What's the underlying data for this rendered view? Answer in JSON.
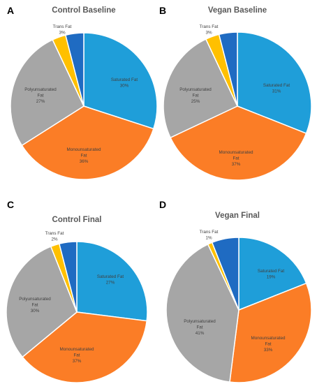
{
  "colors": {
    "saturated": "#1F9ED9",
    "monounsaturated": "#FB7D26",
    "polyunsaturated": "#A6A6A6",
    "trans": "#FFC000",
    "other": "#1F6BC2"
  },
  "chart_data": [
    {
      "type": "pie",
      "panel": "A",
      "title": "Control Baseline",
      "slices": [
        {
          "key": "saturated",
          "label": [
            "Saturated Fat",
            "30%"
          ],
          "value": 30
        },
        {
          "key": "monounsaturated",
          "label": [
            "Monounsaturated",
            "Fat",
            "36%"
          ],
          "value": 36
        },
        {
          "key": "polyunsaturated",
          "label": [
            "Polyunsaturated",
            "Fat",
            "27%"
          ],
          "value": 27
        },
        {
          "key": "trans",
          "label": [
            "Trans Fat",
            "3%"
          ],
          "value": 3
        },
        {
          "key": "other",
          "label": [],
          "value": 4
        }
      ]
    },
    {
      "type": "pie",
      "panel": "B",
      "title": "Vegan Baseline",
      "slices": [
        {
          "key": "saturated",
          "label": [
            "Saturated Fat",
            "31%"
          ],
          "value": 31
        },
        {
          "key": "monounsaturated",
          "label": [
            "Monounsaturated",
            "Fat",
            "37%"
          ],
          "value": 37
        },
        {
          "key": "polyunsaturated",
          "label": [
            "Polyunsaturated",
            "Fat",
            "25%"
          ],
          "value": 25
        },
        {
          "key": "trans",
          "label": [
            "Trans Fat",
            "3%"
          ],
          "value": 3
        },
        {
          "key": "other",
          "label": [],
          "value": 4
        }
      ]
    },
    {
      "type": "pie",
      "panel": "C",
      "title": "Control Final",
      "slices": [
        {
          "key": "saturated",
          "label": [
            "Saturated Fat",
            "27%"
          ],
          "value": 27
        },
        {
          "key": "monounsaturated",
          "label": [
            "Monounsaturated",
            "Fat",
            "37%"
          ],
          "value": 37
        },
        {
          "key": "polyunsaturated",
          "label": [
            "Polyunsaturated",
            "Fat",
            "30%"
          ],
          "value": 30
        },
        {
          "key": "trans",
          "label": [
            "Trans Fat",
            "2%"
          ],
          "value": 2
        },
        {
          "key": "other",
          "label": [],
          "value": 4
        }
      ]
    },
    {
      "type": "pie",
      "panel": "D",
      "title": "Vegan Final",
      "slices": [
        {
          "key": "saturated",
          "label": [
            "Saturated Fat",
            "19%"
          ],
          "value": 19
        },
        {
          "key": "monounsaturated",
          "label": [
            "Monounsaturated",
            "Fat",
            "33%"
          ],
          "value": 33
        },
        {
          "key": "polyunsaturated",
          "label": [
            "Polyunsaturated",
            "Fat",
            "41%"
          ],
          "value": 41
        },
        {
          "key": "trans",
          "label": [
            "Trans Fat",
            "1%"
          ],
          "value": 1
        },
        {
          "key": "other",
          "label": [],
          "value": 6
        }
      ]
    }
  ]
}
